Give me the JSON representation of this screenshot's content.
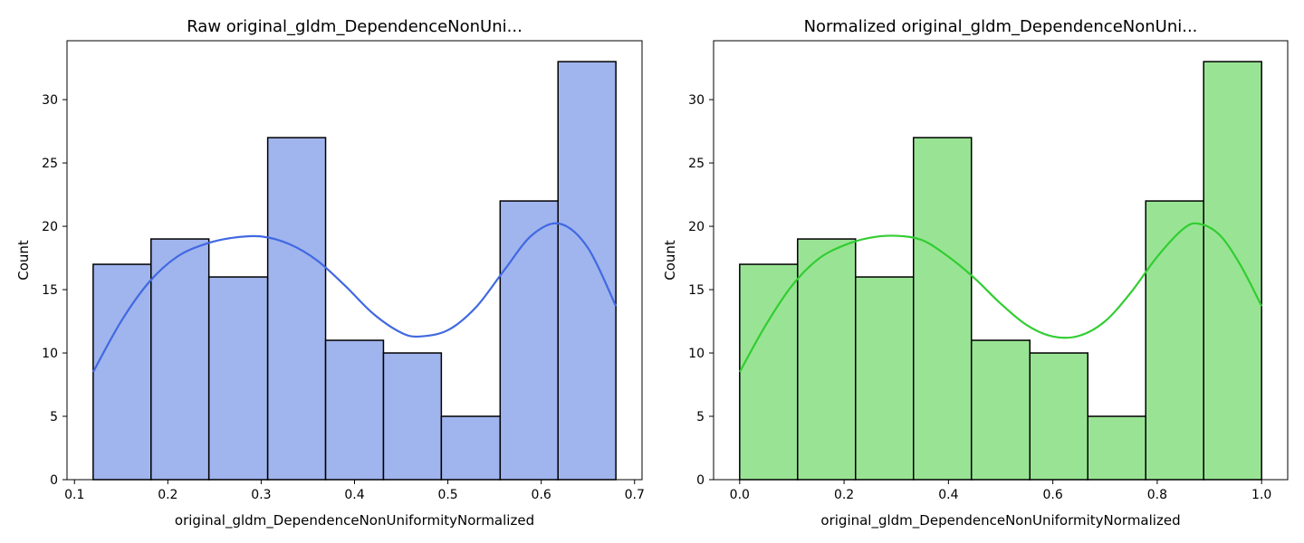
{
  "chart_data": [
    {
      "type": "bar",
      "title": "Raw original_gldm_DependenceNonUni...",
      "xlabel": "original_gldm_DependenceNonUniformityNormalized",
      "ylabel": "Count",
      "bin_edges": [
        0.12,
        0.182,
        0.244,
        0.307,
        0.369,
        0.431,
        0.493,
        0.556,
        0.618,
        0.68
      ],
      "values": [
        17,
        19,
        16,
        27,
        11,
        10,
        5,
        22,
        33
      ],
      "xlim": [
        0.092,
        0.708
      ],
      "ylim": [
        0,
        34.65
      ],
      "xticks": [
        0.1,
        0.2,
        0.3,
        0.4,
        0.5,
        0.6,
        0.7
      ],
      "xtick_labels": [
        "0.1",
        "0.2",
        "0.3",
        "0.4",
        "0.5",
        "0.6",
        "0.7"
      ],
      "yticks": [
        0,
        5,
        10,
        15,
        20,
        25,
        30
      ],
      "ytick_labels": [
        "0",
        "5",
        "10",
        "15",
        "20",
        "25",
        "30"
      ],
      "kde": {
        "x": [
          0.12,
          0.15,
          0.18,
          0.21,
          0.24,
          0.27,
          0.3,
          0.33,
          0.36,
          0.39,
          0.42,
          0.45,
          0.47,
          0.5,
          0.53,
          0.56,
          0.59,
          0.62,
          0.65,
          0.68
        ],
        "y": [
          8.5,
          12.5,
          15.6,
          17.6,
          18.6,
          19.1,
          19.2,
          18.6,
          17.3,
          15.3,
          13.1,
          11.6,
          11.3,
          11.8,
          13.6,
          16.5,
          19.3,
          20.2,
          18.3,
          13.7
        ]
      },
      "colors": {
        "bar_fill": "#a0b4ee",
        "bar_edge": "#000000",
        "kde_line": "#4169e1"
      }
    },
    {
      "type": "bar",
      "title": "Normalized original_gldm_DependenceNonUni...",
      "xlabel": "original_gldm_DependenceNonUniformityNormalized",
      "ylabel": "Count",
      "bin_edges": [
        0.0,
        0.111,
        0.222,
        0.333,
        0.444,
        0.556,
        0.667,
        0.778,
        0.889,
        1.0
      ],
      "values": [
        17,
        19,
        16,
        27,
        11,
        10,
        5,
        22,
        33
      ],
      "xlim": [
        -0.05,
        1.05
      ],
      "ylim": [
        0,
        34.65
      ],
      "xticks": [
        0.0,
        0.2,
        0.4,
        0.6,
        0.8,
        1.0
      ],
      "xtick_labels": [
        "0.0",
        "0.2",
        "0.4",
        "0.6",
        "0.8",
        "1.0"
      ],
      "yticks": [
        0,
        5,
        10,
        15,
        20,
        25,
        30
      ],
      "ytick_labels": [
        "0",
        "5",
        "10",
        "15",
        "20",
        "25",
        "30"
      ],
      "kde": {
        "x": [
          0.0,
          0.05,
          0.1,
          0.15,
          0.2,
          0.25,
          0.3,
          0.35,
          0.4,
          0.45,
          0.5,
          0.55,
          0.6,
          0.65,
          0.7,
          0.75,
          0.8,
          0.85,
          0.88,
          0.92,
          0.96,
          1.0
        ],
        "y": [
          8.5,
          12.2,
          15.3,
          17.4,
          18.5,
          19.1,
          19.25,
          18.9,
          17.6,
          15.9,
          13.9,
          12.2,
          11.3,
          11.35,
          12.5,
          14.8,
          17.6,
          19.8,
          20.2,
          19.3,
          16.9,
          13.7
        ]
      },
      "colors": {
        "bar_fill": "#99e494",
        "bar_edge": "#000000",
        "kde_line": "#32cd32"
      }
    }
  ]
}
